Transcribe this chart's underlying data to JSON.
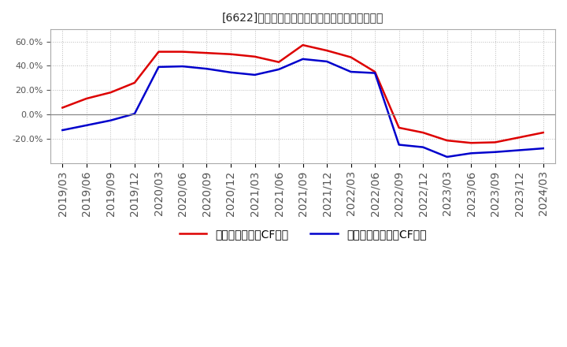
{
  "title": "[6622]　有利子負債キャッシュフロー比率の推移",
  "legend_label_red": "有利子負債営業CF比率",
  "legend_label_blue": "有利子負債フリーCF比率",
  "ylim": [
    -40.0,
    70.0
  ],
  "yticks": [
    -20.0,
    0.0,
    20.0,
    40.0,
    60.0
  ],
  "background_color": "#ffffff",
  "plot_bg_color": "#ffffff",
  "grid_color": "#bbbbbb",
  "red_color": "#dd0000",
  "blue_color": "#0000cc",
  "dates": [
    "2019/03",
    "2019/06",
    "2019/09",
    "2019/12",
    "2020/03",
    "2020/06",
    "2020/09",
    "2020/12",
    "2021/03",
    "2021/06",
    "2021/09",
    "2021/12",
    "2022/03",
    "2022/06",
    "2022/09",
    "2022/12",
    "2023/03",
    "2023/06",
    "2023/09",
    "2023/12",
    "2024/03"
  ],
  "red_values": [
    5.5,
    13.0,
    18.0,
    26.0,
    51.5,
    51.5,
    50.5,
    49.5,
    47.5,
    43.0,
    57.0,
    52.5,
    47.0,
    35.0,
    -11.0,
    -15.0,
    -21.5,
    -23.5,
    -23.0,
    -19.0,
    -15.0
  ],
  "blue_values": [
    -13.0,
    -9.0,
    -5.0,
    0.5,
    39.0,
    39.5,
    37.5,
    34.5,
    32.5,
    37.0,
    45.5,
    43.5,
    35.0,
    34.0,
    -25.0,
    -27.0,
    -35.0,
    -32.0,
    -31.0,
    -29.5,
    -28.0
  ]
}
